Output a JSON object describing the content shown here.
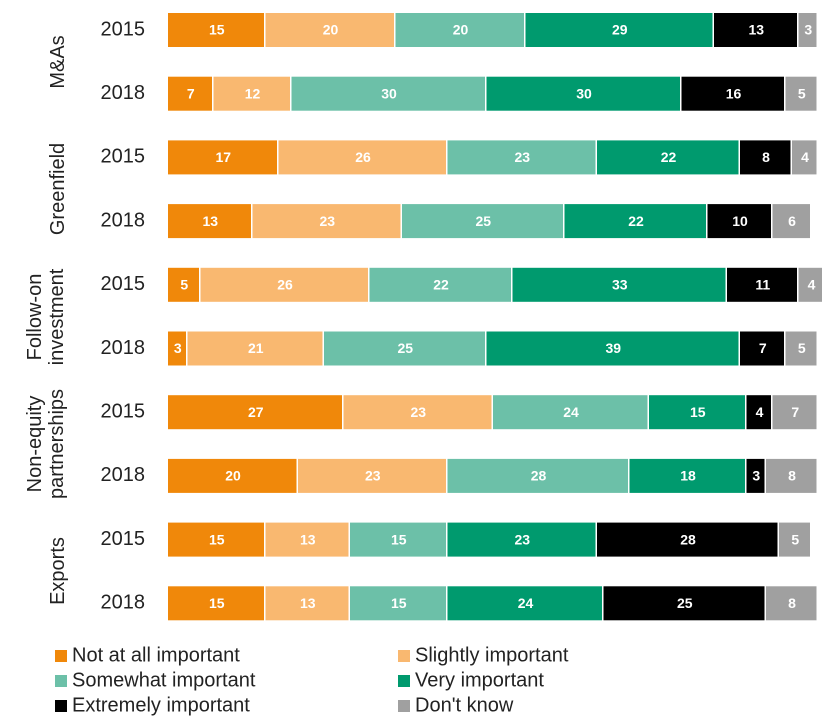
{
  "chart_data": {
    "type": "stacked-bar-horizontal",
    "groups": [
      "M&As",
      "Greenfield",
      "Follow-on\ninvestment",
      "Non-equity\npartnerships",
      "Exports"
    ],
    "categories": [
      "2015",
      "2018",
      "2015",
      "2018",
      "2015",
      "2018",
      "2015",
      "2018",
      "2015",
      "2018"
    ],
    "xlim": [
      0,
      100
    ],
    "legend": "bottom",
    "series": [
      {
        "name": "Not at all important",
        "color": "#f0880a",
        "values": [
          15,
          7,
          17,
          13,
          5,
          3,
          27,
          20,
          15,
          15
        ]
      },
      {
        "name": "Slightly important",
        "color": "#f9b870",
        "values": [
          20,
          12,
          26,
          23,
          26,
          21,
          23,
          23,
          13,
          13
        ]
      },
      {
        "name": "Somewhat important",
        "color": "#6cc0a8",
        "values": [
          20,
          30,
          23,
          25,
          22,
          25,
          24,
          28,
          15,
          15
        ]
      },
      {
        "name": "Very important",
        "color": "#009a6e",
        "values": [
          29,
          30,
          22,
          22,
          33,
          39,
          15,
          18,
          23,
          24
        ]
      },
      {
        "name": "Extremely important",
        "color": "#000000",
        "values": [
          13,
          16,
          8,
          10,
          11,
          7,
          4,
          3,
          28,
          25
        ]
      },
      {
        "name": "Don't know",
        "color": "#a0a0a0",
        "values": [
          3,
          5,
          4,
          6,
          4,
          5,
          7,
          8,
          5,
          8
        ]
      }
    ]
  }
}
